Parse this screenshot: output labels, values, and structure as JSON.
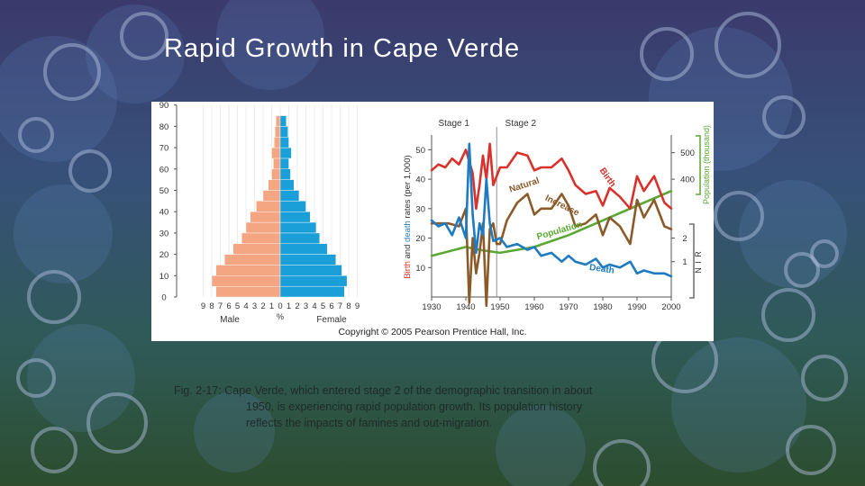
{
  "slide": {
    "title": "Rapid Growth in Cape Verde",
    "caption_lines": [
      "Fig. 2-17: Cape Verde, which entered stage 2 of the demographic transition in about",
      "1950, is experiencing rapid population growth. Its population history",
      "reflects the impacts of famines and out-migration."
    ]
  },
  "colors": {
    "male": "#f4a582",
    "female": "#1a9fd9",
    "birth": "#d9312b",
    "death": "#1f7bc1",
    "natural_increase": "#8b5a2b",
    "population": "#5aa832"
  },
  "figure": {
    "copyright": "Copyright © 2005 Pearson Prentice Hall, Inc."
  },
  "chart_data": [
    {
      "type": "bar",
      "subtype": "population-pyramid",
      "y_ticks": [
        "0",
        "10",
        "20",
        "30",
        "40",
        "50",
        "60",
        "70",
        "80",
        "90"
      ],
      "x_tick_labels": [
        "9",
        "8",
        "7",
        "6",
        "5",
        "4",
        "3",
        "2",
        "1",
        "0",
        "1",
        "2",
        "3",
        "4",
        "5",
        "6",
        "7",
        "8",
        "9"
      ],
      "xlabel": "%",
      "male_label": "Male",
      "female_label": "Female",
      "age_start": [
        0,
        5,
        10,
        15,
        20,
        25,
        30,
        35,
        40,
        45,
        50,
        55,
        60,
        65,
        70,
        75,
        80
      ],
      "series": [
        {
          "name": "Male",
          "values": [
            7.5,
            8.0,
            7.5,
            6.5,
            5.5,
            4.5,
            4.0,
            3.5,
            2.8,
            2.0,
            1.4,
            1.0,
            0.8,
            1.0,
            0.7,
            0.6,
            0.5
          ]
        },
        {
          "name": "Female",
          "values": [
            7.5,
            7.8,
            7.2,
            6.5,
            5.5,
            4.6,
            4.2,
            3.5,
            3.0,
            2.2,
            1.6,
            1.2,
            1.0,
            1.3,
            1.0,
            0.9,
            0.7
          ]
        }
      ],
      "xlim": [
        0,
        9
      ],
      "ylim": [
        0,
        90
      ]
    },
    {
      "type": "line",
      "stage_labels": [
        "Stage 1",
        "Stage 2"
      ],
      "x_ticks": [
        "1930",
        "1940",
        "1950",
        "1960",
        "1970",
        "1980",
        "1990",
        "2000"
      ],
      "y_ticks": [
        "10",
        "20",
        "30",
        "40",
        "50"
      ],
      "ylabel_birth": "Birth",
      "ylabel_and": " and ",
      "ylabel_death": "death",
      "ylabel_rest": " rates (per 1,000)",
      "pop_ticks": [
        "400",
        "500"
      ],
      "pop_label": "Population (thousand)",
      "nir_ticks": [
        "1",
        "2"
      ],
      "nir_label": "N I R",
      "xlim": [
        1930,
        2000
      ],
      "ylim": [
        0,
        55
      ],
      "series": [
        {
          "name": "Birth",
          "x": [
            1930,
            1932,
            1934,
            1936,
            1938,
            1940,
            1942,
            1943,
            1944,
            1945,
            1946,
            1947,
            1948,
            1950,
            1952,
            1955,
            1958,
            1960,
            1962,
            1965,
            1968,
            1970,
            1972,
            1975,
            1978,
            1980,
            1982,
            1985,
            1988,
            1990,
            1992,
            1995,
            1998,
            2000
          ],
          "y": [
            43,
            45,
            44,
            47,
            45,
            50,
            42,
            30,
            38,
            48,
            40,
            52,
            38,
            44,
            44,
            49,
            48,
            43,
            44,
            44,
            47,
            43,
            38,
            35,
            36,
            31,
            37,
            34,
            30,
            41,
            36,
            41,
            32,
            30
          ]
        },
        {
          "name": "Death",
          "x": [
            1930,
            1932,
            1934,
            1936,
            1938,
            1940,
            1941,
            1942,
            1943,
            1944,
            1945,
            1946,
            1947,
            1948,
            1950,
            1952,
            1955,
            1958,
            1960,
            1962,
            1965,
            1968,
            1970,
            1972,
            1975,
            1978,
            1980,
            1982,
            1985,
            1988,
            1990,
            1992,
            1995,
            1998,
            2000
          ],
          "y": [
            26,
            24,
            25,
            21,
            27,
            20,
            52,
            28,
            15,
            25,
            21,
            40,
            25,
            19,
            20,
            17,
            18,
            16,
            17,
            14,
            15,
            12,
            14,
            12,
            11,
            13,
            10,
            11,
            10,
            12,
            8,
            9,
            8,
            8,
            7
          ]
        },
        {
          "name": "Natural Increase",
          "x": [
            1930,
            1935,
            1938,
            1940,
            1941,
            1942,
            1943,
            1944,
            1945,
            1946,
            1947,
            1948,
            1949,
            1950,
            1952,
            1955,
            1958,
            1960,
            1962,
            1965,
            1968,
            1970,
            1972,
            1975,
            1978,
            1980,
            1982,
            1985,
            1988,
            1990,
            1992,
            1995,
            1998,
            2000
          ],
          "y": [
            25,
            25,
            24,
            30,
            -2,
            20,
            8,
            15,
            25,
            -3,
            23,
            25,
            18,
            18,
            26,
            32,
            35,
            28,
            30,
            30,
            35,
            31,
            24,
            25,
            28,
            21,
            27,
            24,
            18,
            33,
            27,
            33,
            24,
            23
          ]
        },
        {
          "name": "Population",
          "x": [
            1930,
            1940,
            1944,
            1950,
            1960,
            1970,
            1980,
            1990,
            2000
          ],
          "y": [
            14,
            17,
            16,
            15,
            17,
            21,
            26,
            31,
            36
          ]
        }
      ],
      "annotations": [
        "Birth",
        "Natural",
        "Increase",
        "Population",
        "Death"
      ]
    }
  ]
}
